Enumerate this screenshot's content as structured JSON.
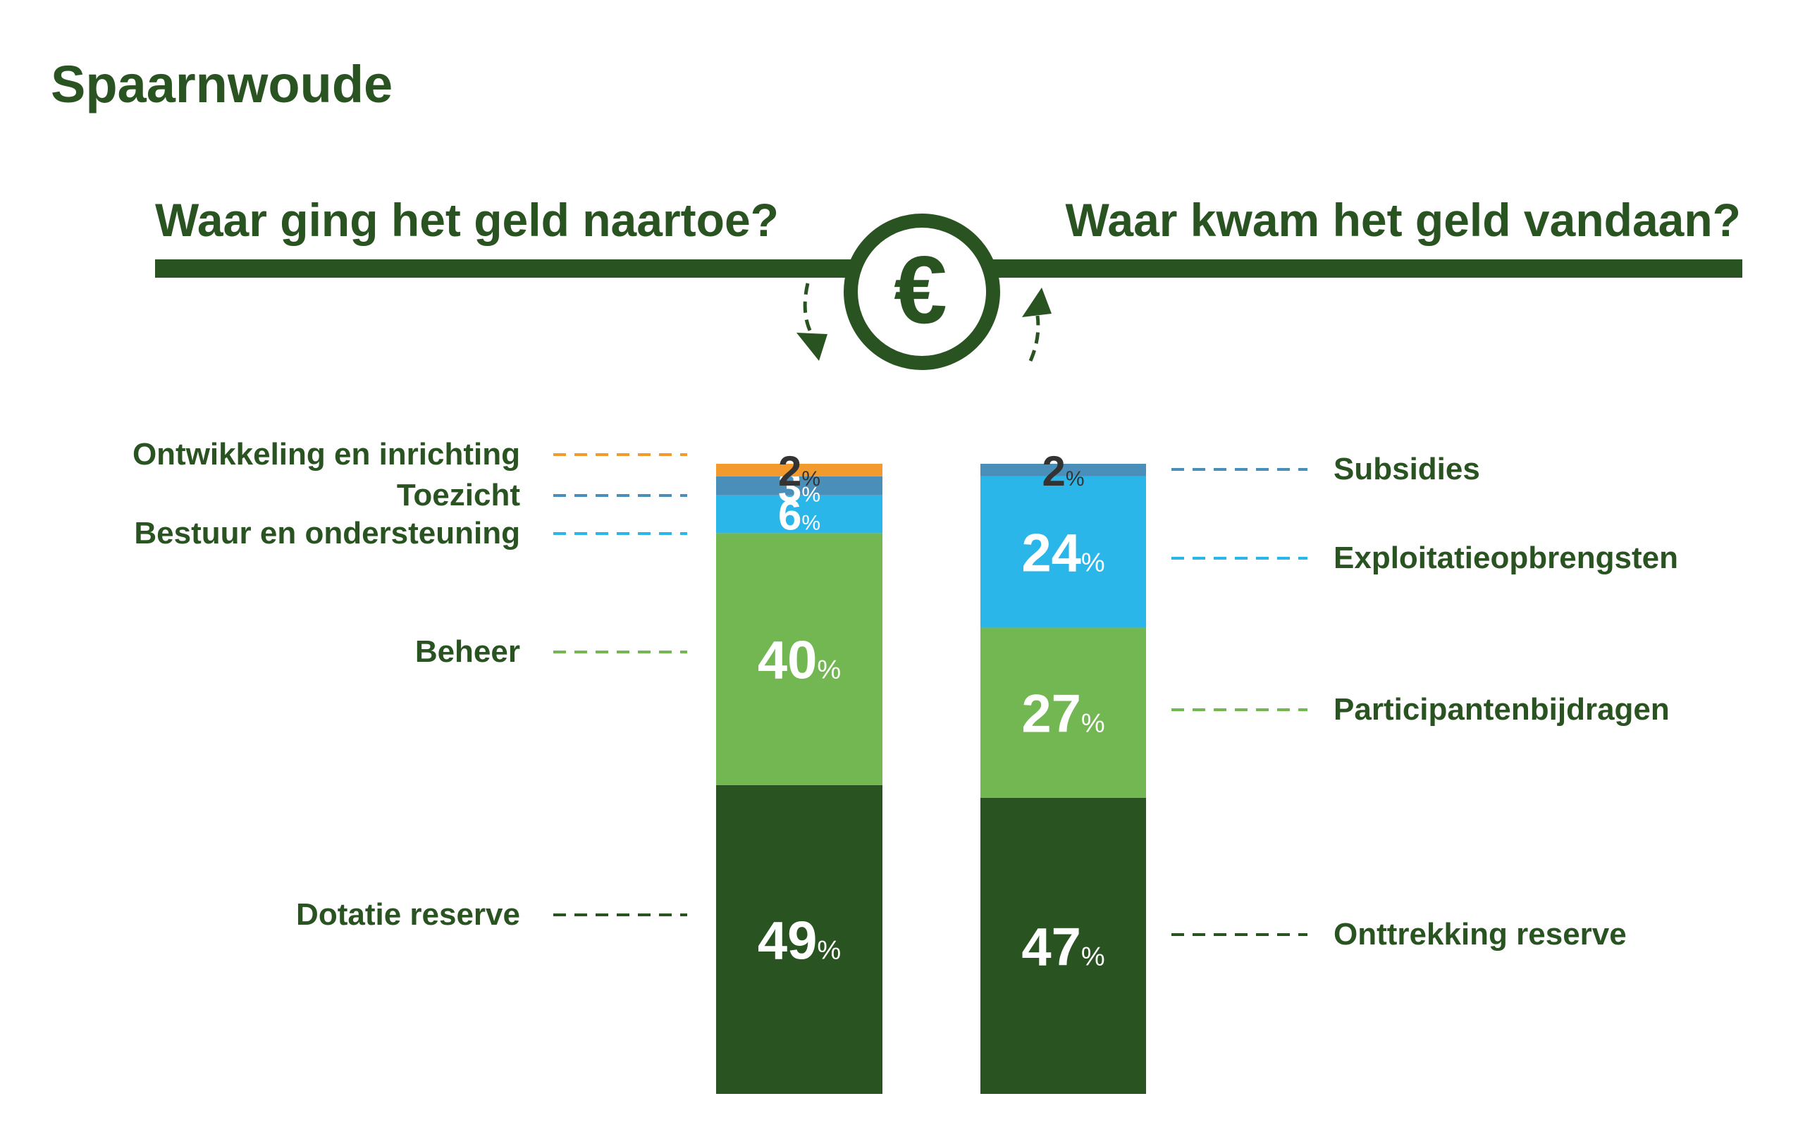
{
  "page_title": "Spaarnwoude",
  "headings": {
    "left": "Waar ging het geld naartoe?",
    "right": "Waar kwam het geld vandaan?"
  },
  "euro_symbol": "€",
  "percent_sign": "%",
  "colors": {
    "dark_green": "#2a5322",
    "light_green": "#72b752",
    "cyan": "#2bb6ea",
    "steel_blue": "#4a8fba",
    "orange": "#f29a2e",
    "label_dark": "#333333",
    "white": "#ffffff"
  },
  "icons": {
    "center": "euro-circle-icon",
    "left_arrow": "curved-arrow-down-icon",
    "right_arrow": "curved-arrow-up-icon"
  },
  "chart_data": [
    {
      "type": "bar",
      "stacked": true,
      "title": "Waar ging het geld naartoe?",
      "unit": "%",
      "series": [
        {
          "name": "Dotatie reserve",
          "value": 49,
          "color": "#2a5322"
        },
        {
          "name": "Beheer",
          "value": 40,
          "color": "#72b752"
        },
        {
          "name": "Bestuur en ondersteuning",
          "value": 6,
          "color": "#2bb6ea"
        },
        {
          "name": "Toezicht",
          "value": 3,
          "color": "#4a8fba"
        },
        {
          "name": "Ontwikkeling en inrichting",
          "value": 2,
          "color": "#f29a2e"
        }
      ],
      "legend_side": "left"
    },
    {
      "type": "bar",
      "stacked": true,
      "title": "Waar kwam het geld vandaan?",
      "unit": "%",
      "series": [
        {
          "name": "Onttrekking reserve",
          "value": 47,
          "color": "#2a5322"
        },
        {
          "name": "Participantenbijdragen",
          "value": 27,
          "color": "#72b752"
        },
        {
          "name": "Exploitatieopbrengsten",
          "value": 24,
          "color": "#2bb6ea"
        },
        {
          "name": "Subsidies",
          "value": 2,
          "color": "#4a8fba"
        }
      ],
      "legend_side": "right"
    }
  ]
}
